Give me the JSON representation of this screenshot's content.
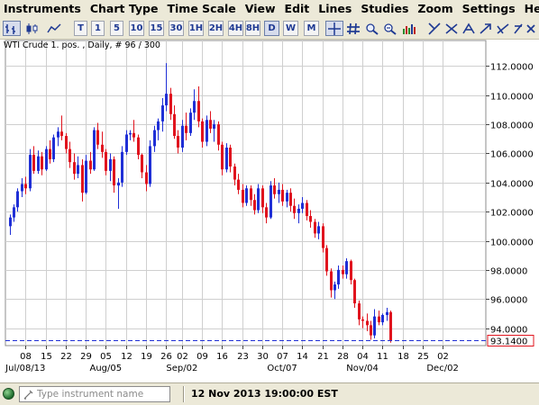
{
  "menu": [
    "Instruments",
    "Chart Type",
    "Time Scale",
    "View",
    "Edit",
    "Lines",
    "Studies",
    "Zoom",
    "Settings",
    "Help"
  ],
  "toolbar": {
    "timescale": [
      "T",
      "1",
      "5",
      "10",
      "15",
      "30",
      "1H",
      "2H",
      "4H",
      "8H",
      "D",
      "W",
      "M"
    ],
    "active_timescale": "D",
    "icons": [
      "bar-chart-icon",
      "candlestick-icon",
      "line-chart-icon",
      "crosshair-icon",
      "grid-icon",
      "zoom-in-icon",
      "zoom-out-icon",
      "volume-icon",
      "draw-line-icon",
      "draw-channel-icon",
      "draw-fib-icon",
      "draw-arrow-icon",
      "draw-text-icon",
      "draw-misc-icon",
      "close-icon"
    ]
  },
  "chart_title": "WTI Crude 1. pos. , Daily, # 96 / 300",
  "statusbar": {
    "instrument_placeholder": "Type instrument name",
    "datetime": "12 Nov 2013 19:00:00 EST"
  },
  "colors": {
    "up": "#1f2fd6",
    "down": "#e0141e",
    "grid": "#cfcfcf",
    "last_line": "#1f2fd6",
    "accent": "#1f3a93"
  },
  "chart_data": {
    "type": "candlestick",
    "title": "WTI Crude 1. pos. , Daily, # 96 / 300",
    "ylim": [
      92.8,
      113.2
    ],
    "yticks": [
      "94.0000",
      "96.0000",
      "98.0000",
      "100.0000",
      "102.0000",
      "104.0000",
      "106.0000",
      "108.0000",
      "110.0000",
      "112.0000"
    ],
    "ytick_values": [
      94,
      96,
      98,
      100,
      102,
      104,
      106,
      108,
      110,
      112
    ],
    "last_price_label": "93.1400",
    "last_price": 93.14,
    "xticks": [
      "08",
      "15",
      "22",
      "29",
      "05",
      "12",
      "19",
      "26",
      "02",
      "09",
      "16",
      "23",
      "30",
      "07",
      "14",
      "21",
      "28",
      "04",
      "11",
      "18",
      "25",
      "02"
    ],
    "xtick_bar_index": [
      4,
      9,
      14,
      19,
      24,
      29,
      34,
      39,
      43,
      48,
      53,
      58,
      63,
      68,
      73,
      78,
      83,
      88,
      93,
      98,
      103,
      108
    ],
    "month_labels": [
      "Jul/08/13",
      "Aug/05",
      "Sep/02",
      "Oct/07",
      "Nov/04",
      "Dec/02"
    ],
    "month_bar_index": [
      4,
      24,
      43,
      68,
      88,
      108
    ],
    "candles": [
      [
        101.0,
        101.8,
        100.4,
        101.6
      ],
      [
        101.6,
        102.5,
        101.3,
        102.3
      ],
      [
        102.3,
        103.6,
        102.0,
        103.4
      ],
      [
        103.4,
        104.3,
        103.0,
        103.9
      ],
      [
        103.9,
        104.4,
        103.2,
        103.6
      ],
      [
        103.6,
        106.3,
        103.4,
        105.9
      ],
      [
        105.9,
        106.5,
        104.6,
        104.8
      ],
      [
        104.8,
        106.2,
        104.6,
        105.8
      ],
      [
        105.8,
        106.1,
        104.5,
        104.9
      ],
      [
        104.9,
        106.5,
        104.8,
        106.3
      ],
      [
        106.3,
        106.9,
        105.3,
        105.6
      ],
      [
        105.6,
        107.3,
        105.4,
        107.1
      ],
      [
        107.1,
        107.8,
        106.5,
        107.5
      ],
      [
        107.5,
        108.6,
        106.9,
        107.2
      ],
      [
        107.2,
        107.4,
        106.0,
        106.3
      ],
      [
        106.3,
        106.8,
        105.0,
        105.4
      ],
      [
        105.4,
        106.0,
        104.2,
        104.6
      ],
      [
        104.6,
        105.8,
        104.3,
        105.2
      ],
      [
        105.2,
        105.6,
        102.7,
        103.3
      ],
      [
        103.3,
        105.9,
        103.2,
        105.5
      ],
      [
        105.5,
        106.1,
        104.6,
        104.9
      ],
      [
        104.9,
        107.8,
        104.8,
        107.6
      ],
      [
        107.6,
        108.1,
        106.3,
        106.6
      ],
      [
        106.6,
        107.5,
        105.7,
        106.1
      ],
      [
        106.1,
        106.3,
        104.5,
        104.8
      ],
      [
        104.8,
        106.0,
        104.1,
        105.6
      ],
      [
        105.6,
        105.8,
        103.3,
        103.8
      ],
      [
        103.8,
        104.3,
        102.2,
        104.0
      ],
      [
        104.0,
        106.5,
        103.7,
        106.1
      ],
      [
        106.1,
        107.6,
        105.9,
        107.3
      ],
      [
        107.3,
        107.6,
        106.9,
        107.4
      ],
      [
        107.4,
        108.3,
        106.8,
        107.1
      ],
      [
        107.1,
        107.3,
        105.6,
        105.9
      ],
      [
        105.9,
        106.0,
        104.3,
        104.7
      ],
      [
        104.7,
        105.2,
        103.4,
        103.9
      ],
      [
        103.9,
        106.9,
        103.7,
        106.5
      ],
      [
        106.5,
        107.9,
        106.1,
        107.6
      ],
      [
        107.6,
        108.4,
        106.9,
        108.2
      ],
      [
        108.2,
        109.8,
        107.5,
        109.3
      ],
      [
        109.3,
        112.2,
        108.9,
        110.1
      ],
      [
        110.1,
        110.5,
        108.3,
        108.7
      ],
      [
        108.7,
        109.3,
        107.0,
        107.2
      ],
      [
        107.2,
        107.6,
        106.0,
        106.4
      ],
      [
        106.4,
        108.3,
        106.1,
        107.9
      ],
      [
        107.9,
        108.8,
        106.9,
        107.4
      ],
      [
        107.4,
        109.1,
        107.2,
        108.8
      ],
      [
        108.8,
        110.4,
        108.3,
        109.6
      ],
      [
        109.6,
        110.6,
        107.8,
        108.2
      ],
      [
        108.2,
        108.4,
        106.4,
        106.8
      ],
      [
        106.8,
        108.6,
        106.5,
        108.3
      ],
      [
        108.3,
        108.9,
        107.4,
        107.7
      ],
      [
        107.7,
        108.3,
        106.8,
        108.0
      ],
      [
        108.0,
        108.2,
        106.2,
        106.6
      ],
      [
        106.6,
        106.8,
        104.5,
        104.9
      ],
      [
        104.9,
        106.7,
        104.7,
        106.4
      ],
      [
        106.4,
        106.6,
        104.7,
        105.1
      ],
      [
        105.1,
        105.3,
        103.8,
        104.2
      ],
      [
        104.2,
        104.6,
        103.2,
        103.5
      ],
      [
        103.5,
        103.9,
        102.3,
        102.6
      ],
      [
        102.6,
        103.8,
        102.4,
        103.6
      ],
      [
        103.6,
        103.8,
        102.4,
        102.8
      ],
      [
        102.8,
        103.2,
        101.8,
        102.1
      ],
      [
        102.1,
        103.9,
        101.9,
        103.6
      ],
      [
        103.6,
        103.8,
        101.9,
        102.3
      ],
      [
        102.3,
        102.6,
        101.2,
        101.6
      ],
      [
        101.6,
        104.1,
        101.5,
        103.8
      ],
      [
        103.8,
        104.3,
        102.9,
        103.2
      ],
      [
        103.2,
        104.0,
        102.6,
        103.5
      ],
      [
        103.5,
        103.9,
        102.4,
        102.7
      ],
      [
        102.7,
        103.5,
        102.3,
        103.3
      ],
      [
        103.3,
        103.6,
        102.0,
        102.4
      ],
      [
        102.4,
        102.9,
        101.5,
        101.9
      ],
      [
        101.9,
        102.5,
        101.2,
        102.2
      ],
      [
        102.2,
        103.0,
        101.9,
        102.6
      ],
      [
        102.6,
        102.8,
        101.4,
        101.7
      ],
      [
        101.7,
        102.1,
        100.9,
        101.3
      ],
      [
        101.3,
        101.5,
        100.2,
        100.5
      ],
      [
        100.5,
        101.3,
        100.1,
        101.0
      ],
      [
        101.0,
        101.2,
        99.2,
        99.5
      ],
      [
        99.5,
        99.7,
        97.6,
        97.9
      ],
      [
        97.9,
        98.1,
        96.1,
        96.6
      ],
      [
        96.6,
        97.2,
        96.0,
        97.0
      ],
      [
        97.0,
        98.3,
        96.7,
        98.0
      ],
      [
        98.0,
        98.3,
        97.4,
        97.7
      ],
      [
        97.7,
        98.8,
        97.4,
        98.6
      ],
      [
        98.6,
        98.7,
        97.0,
        97.3
      ],
      [
        97.3,
        97.4,
        95.4,
        95.7
      ],
      [
        95.7,
        95.9,
        94.2,
        94.6
      ],
      [
        94.6,
        94.8,
        94.0,
        94.5
      ],
      [
        94.5,
        95.0,
        93.8,
        94.2
      ],
      [
        94.2,
        94.5,
        93.2,
        93.5
      ],
      [
        93.5,
        95.3,
        93.3,
        94.8
      ],
      [
        94.8,
        95.2,
        94.2,
        94.4
      ],
      [
        94.4,
        95.0,
        94.2,
        94.9
      ],
      [
        94.9,
        95.4,
        94.5,
        95.1
      ],
      [
        95.1,
        95.2,
        93.0,
        93.14
      ]
    ]
  }
}
